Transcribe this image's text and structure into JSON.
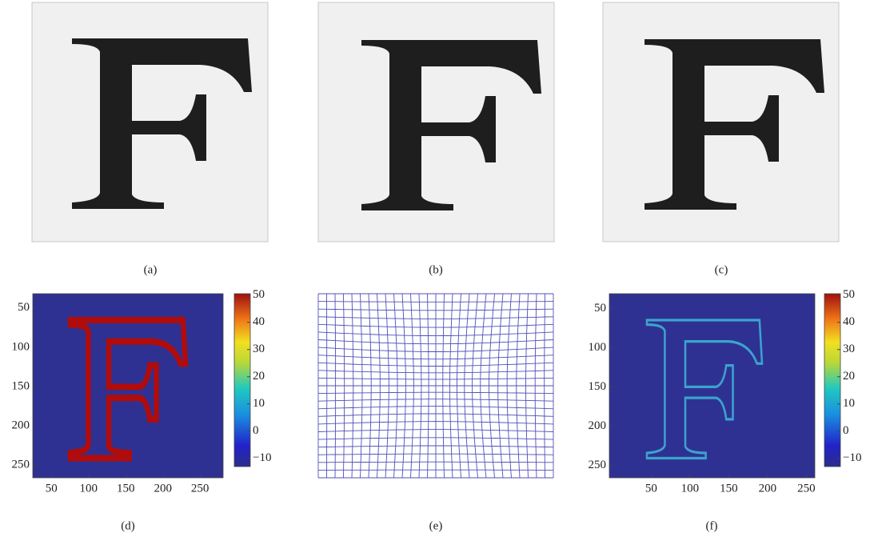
{
  "panels": [
    {
      "caption": "(a)"
    },
    {
      "caption": "(b)"
    },
    {
      "caption": "(c)"
    },
    {
      "caption": "(d)",
      "xlim": [
        25,
        281
      ],
      "ylim": [
        32,
        266
      ],
      "xticks": [
        50,
        100,
        150,
        200,
        250
      ],
      "yticks": [
        50,
        100,
        150,
        200,
        250
      ],
      "clim": [
        -13,
        50.5
      ],
      "cticks": [
        50,
        40,
        30,
        20,
        10,
        0,
        {
          "value": -10,
          "label": "−10"
        }
      ]
    },
    {
      "caption": "(e)"
    },
    {
      "caption": "(f)",
      "xlim": [
        -4,
        261
      ],
      "ylim": [
        31,
        266
      ],
      "xticks": [
        50,
        100,
        150,
        200,
        250
      ],
      "yticks": [
        50,
        100,
        150,
        200,
        250
      ],
      "clim": [
        -13,
        50.5
      ],
      "cticks": [
        50,
        40,
        30,
        20,
        10,
        0,
        {
          "value": -10,
          "label": "−10"
        }
      ]
    }
  ]
}
